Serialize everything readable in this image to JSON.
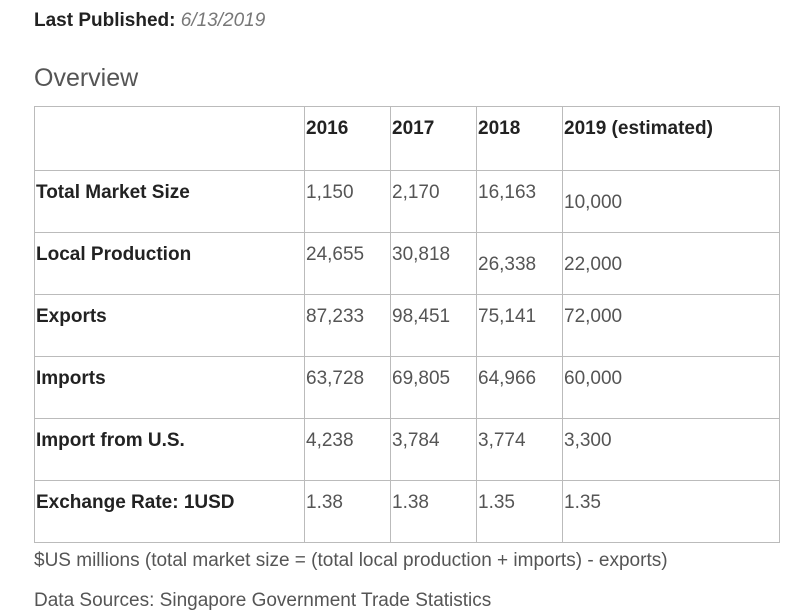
{
  "header": {
    "label": "Last Published:",
    "date": "6/13/2019"
  },
  "section_title": "Overview",
  "table": {
    "columns": [
      "",
      "2016",
      "2017",
      "2018",
      "2019 (estimated)"
    ],
    "rows": [
      [
        "Total Market Size",
        "1,150",
        "2,170",
        "16,163",
        "10,000"
      ],
      [
        "Local Production",
        "24,655",
        "30,818",
        "26,338",
        "22,000"
      ],
      [
        "Exports",
        "87,233",
        "98,451",
        "75,141",
        "72,000"
      ],
      [
        "Imports",
        "63,728",
        "69,805",
        "64,966",
        "60,000"
      ],
      [
        "Import from U.S.",
        "4,238",
        "3,784",
        "3,774",
        "3,300"
      ],
      [
        "Exchange Rate: 1USD",
        "1.38",
        "1.38",
        "1.35",
        "1.35"
      ]
    ]
  },
  "notes": [
    "$US millions (total market size = (total local production + imports) - exports)",
    "Data Sources: Singapore Government Trade Statistics"
  ]
}
